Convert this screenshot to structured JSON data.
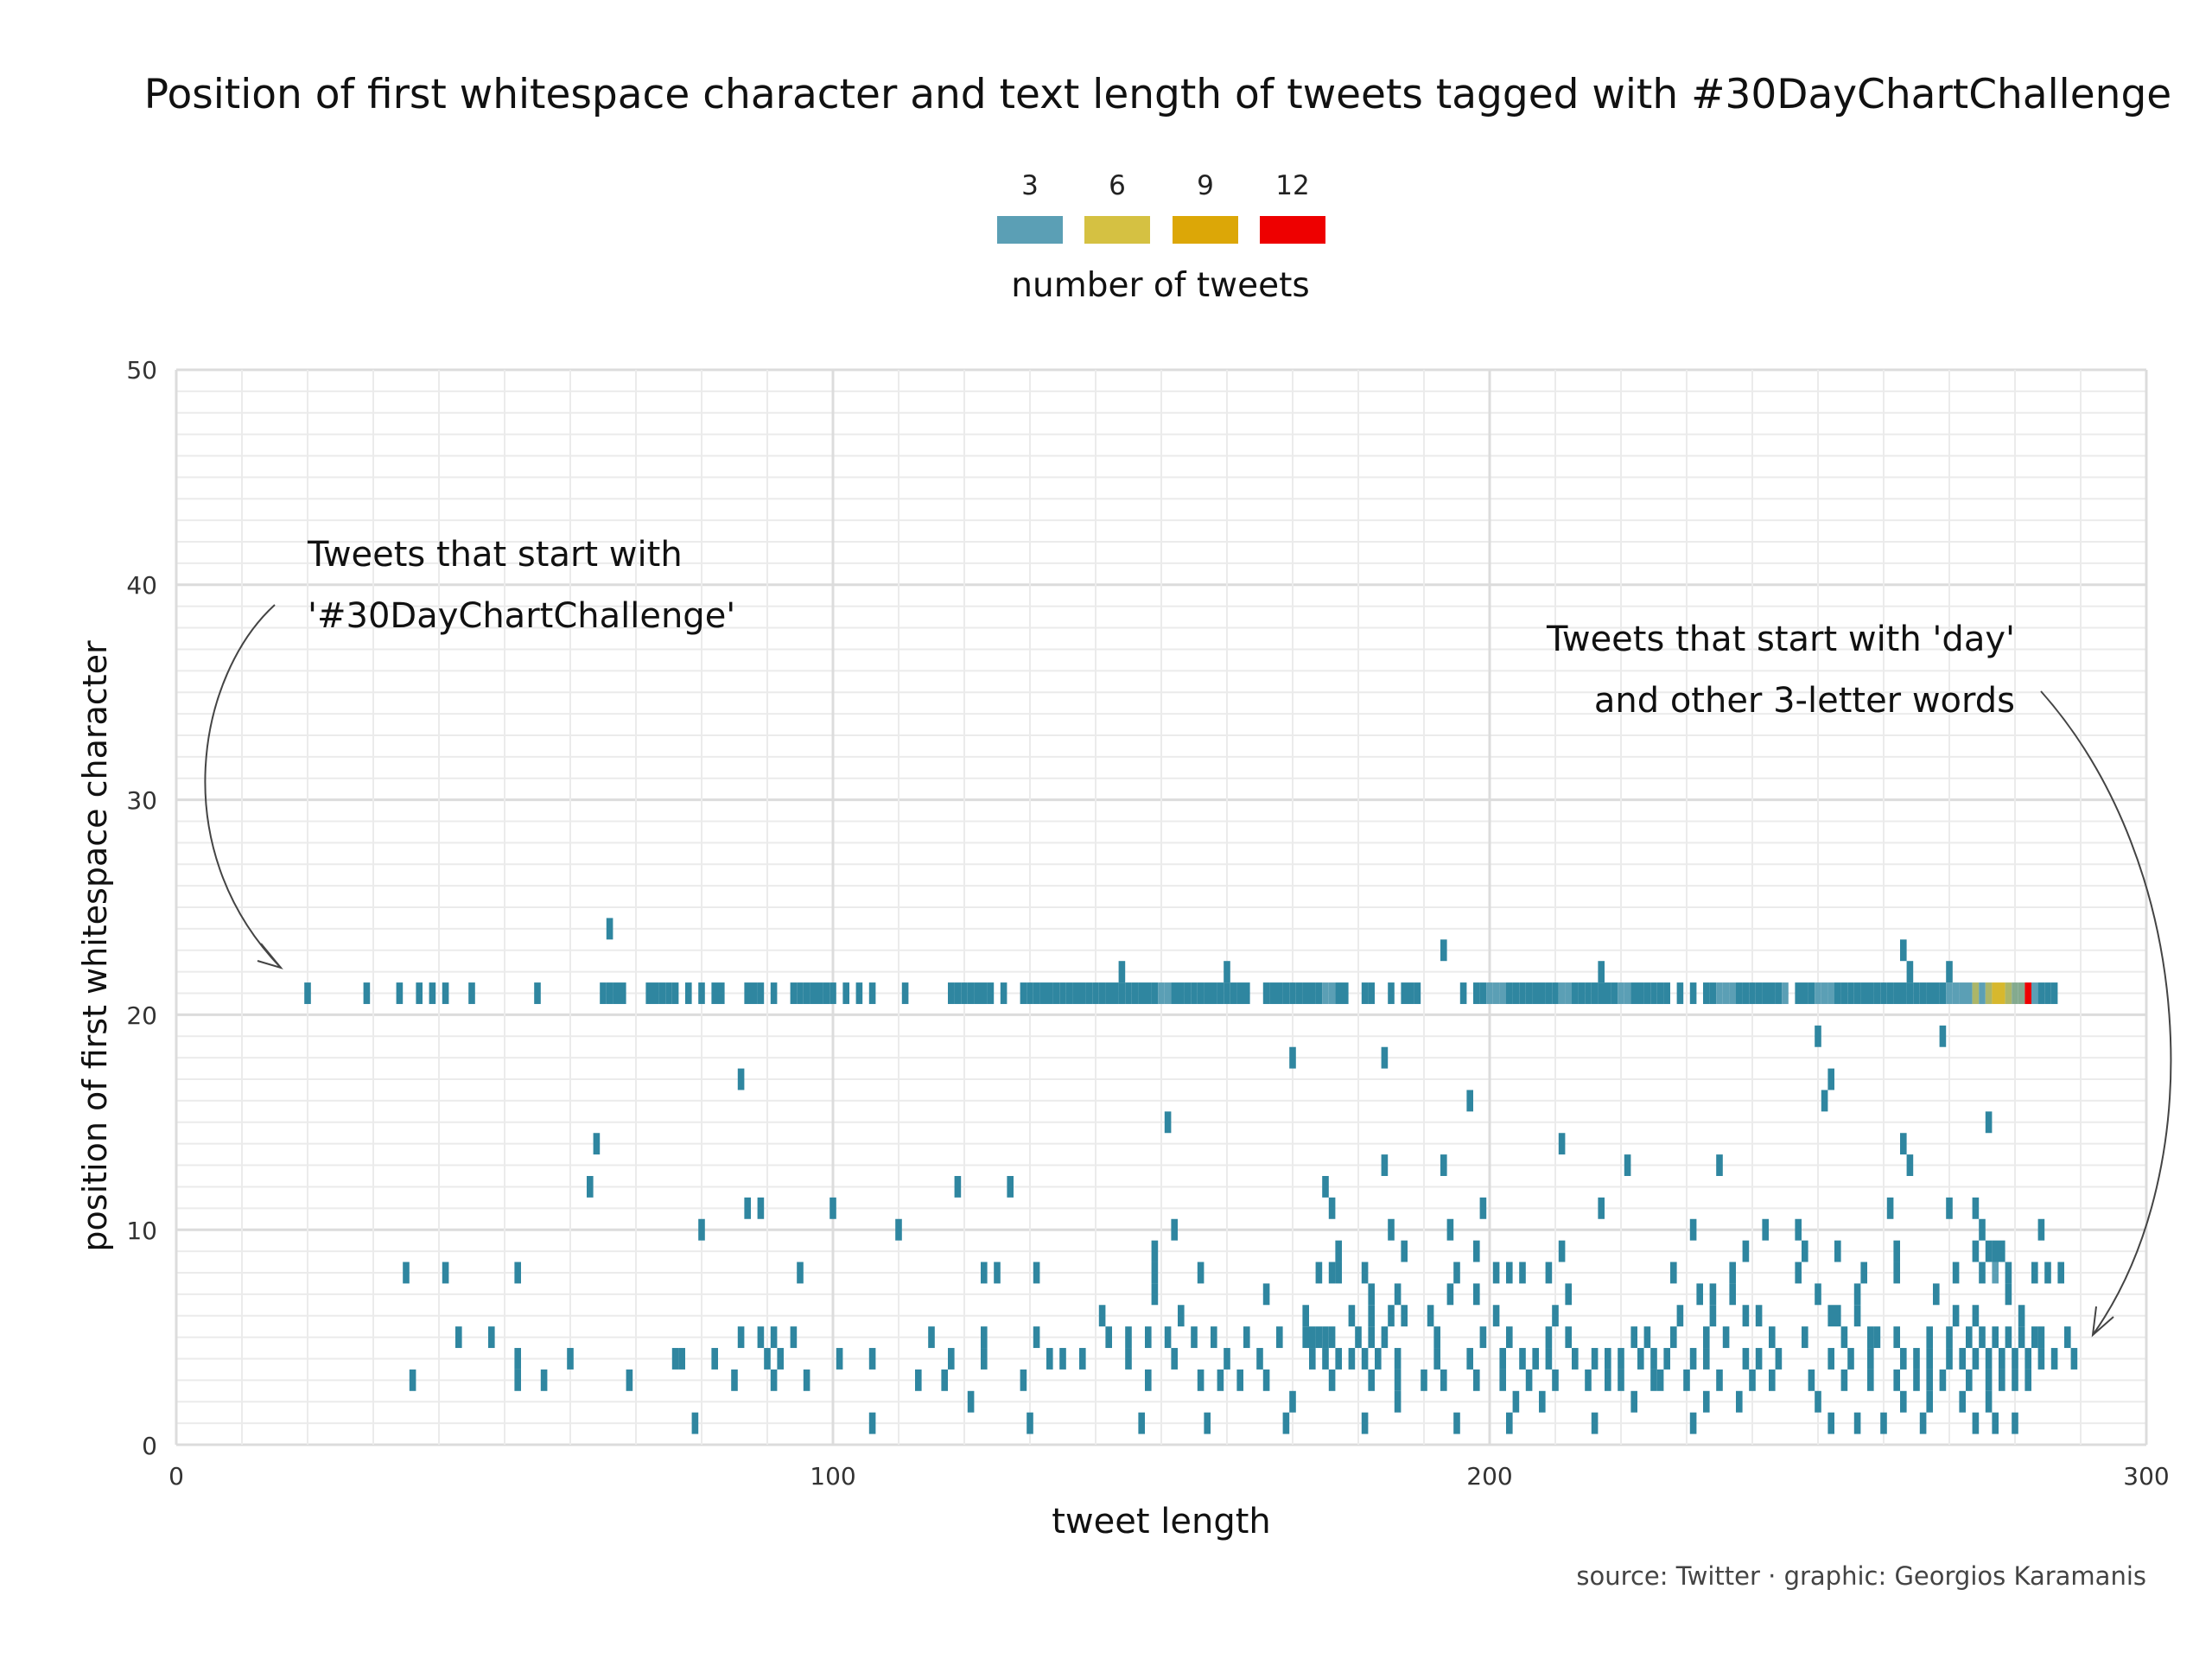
{
  "chart_data": {
    "type": "heatmap",
    "title": "Position of first whitespace character and text length of tweets tagged with #30DayChartChallenge",
    "xlabel": "tweet length",
    "ylabel": "position of first whitespace character",
    "xlim": [
      0,
      300
    ],
    "ylim": [
      0,
      50
    ],
    "x_ticks": [
      0,
      100,
      200,
      300
    ],
    "y_ticks": [
      0,
      10,
      20,
      30,
      40,
      50
    ],
    "grid": true,
    "legend": {
      "title": "number of tweets",
      "placement": "top-center",
      "breaks": [
        3,
        6,
        9,
        12
      ],
      "colors": [
        "#5b9fb5",
        "#d5c142",
        "#dca707",
        "#ee0000"
      ]
    },
    "color_scale": {
      "stops": [
        {
          "value": 1,
          "color": "#2f86a0"
        },
        {
          "value": 3,
          "color": "#5b9fb5"
        },
        {
          "value": 6,
          "color": "#d5c142"
        },
        {
          "value": 9,
          "color": "#dca707"
        },
        {
          "value": 12,
          "color": "#ee0000"
        }
      ]
    },
    "annotations": [
      {
        "lines": [
          "Tweets that start with",
          "'#30DayChartChallenge'"
        ],
        "align": "left"
      },
      {
        "lines": [
          "Tweets that start with 'day'",
          "and other 3-letter words"
        ],
        "align": "right"
      }
    ],
    "caption": "source: Twitter · graphic: Georgios Karamanis",
    "rows": [
      {
        "y": 21,
        "x": [
          20,
          29,
          34,
          37,
          39,
          41,
          45,
          55,
          65,
          66,
          67,
          68,
          72,
          73,
          74,
          75,
          76,
          78,
          80,
          82,
          83,
          87,
          88,
          89,
          91,
          94,
          95,
          96,
          97,
          98,
          99,
          100,
          102,
          104,
          106,
          111,
          118,
          119,
          120,
          121,
          122,
          123,
          124,
          126,
          129,
          130,
          131,
          132,
          133,
          134,
          135,
          136,
          137,
          138,
          139,
          140,
          141,
          142,
          143,
          144,
          145,
          146,
          147,
          148,
          149,
          150,
          151,
          152,
          153,
          154,
          155,
          156,
          157,
          158,
          159,
          160,
          161,
          162,
          163,
          166,
          167,
          168,
          169,
          170,
          171,
          172,
          173,
          174,
          175,
          176,
          177,
          178,
          181,
          182,
          185,
          187,
          188,
          189,
          196,
          198,
          199,
          200,
          201,
          202,
          203,
          204,
          205,
          206,
          207,
          208,
          209,
          210,
          211,
          212,
          213,
          214,
          215,
          216,
          217,
          218,
          219,
          220,
          221,
          222,
          223,
          224,
          225,
          226,
          227,
          229,
          231,
          233,
          234,
          235,
          236,
          237,
          238,
          239,
          240,
          241,
          242,
          243,
          244,
          245,
          247,
          248,
          249,
          250,
          251,
          252,
          253,
          254,
          255,
          256,
          257,
          258,
          259,
          260,
          261,
          262,
          263,
          264,
          265,
          266,
          267,
          268,
          269,
          270,
          271,
          272,
          273,
          274,
          275,
          276,
          277,
          278,
          279,
          280,
          281,
          282,
          283,
          284,
          285,
          286
        ],
        "counts": {
          "150": 3,
          "151": 3,
          "175": 3,
          "176": 3,
          "200": 3,
          "201": 3,
          "202": 3,
          "211": 3,
          "212": 3,
          "220": 3,
          "221": 3,
          "235": 3,
          "236": 3,
          "237": 3,
          "245": 3,
          "250": 3,
          "251": 3,
          "252": 3,
          "270": 3,
          "271": 3,
          "272": 3,
          "273": 3,
          "274": 5,
          "275": 3,
          "276": 5,
          "277": 7,
          "278": 7,
          "279": 5,
          "280": 4,
          "281": 4,
          "282": 12,
          "283": 3
        }
      },
      {
        "y": 22,
        "x": [
          144,
          160,
          217,
          264,
          270
        ]
      },
      {
        "y": 23,
        "x": [
          193,
          263
        ]
      },
      {
        "y": 24,
        "x": [
          66
        ]
      },
      {
        "y": 19,
        "x": [
          250,
          269
        ]
      },
      {
        "y": 18,
        "x": [
          170,
          184
        ]
      },
      {
        "y": 17,
        "x": [
          86,
          252
        ]
      },
      {
        "y": 16,
        "x": [
          197,
          251
        ]
      },
      {
        "y": 15,
        "x": [
          151,
          276
        ]
      },
      {
        "y": 14,
        "x": [
          64,
          211,
          263
        ]
      },
      {
        "y": 13,
        "x": [
          184,
          193,
          221,
          235,
          264
        ]
      },
      {
        "y": 12,
        "x": [
          63,
          119,
          127,
          175
        ]
      },
      {
        "y": 11,
        "x": [
          87,
          89,
          100,
          176,
          199,
          217,
          261,
          270,
          274
        ]
      },
      {
        "y": 10,
        "x": [
          80,
          110,
          152,
          185,
          194,
          231,
          242,
          247,
          275,
          284
        ]
      },
      {
        "y": 9,
        "x": [
          149,
          177,
          187,
          198,
          211,
          239,
          248,
          253,
          262,
          274,
          276,
          277,
          278
        ]
      },
      {
        "y": 8,
        "x": [
          35,
          41,
          52,
          95,
          123,
          125,
          131,
          149,
          156,
          174,
          176,
          177,
          181,
          195,
          201,
          203,
          205,
          209,
          228,
          237,
          247,
          257,
          262,
          271,
          275,
          277,
          279,
          283,
          285,
          287
        ],
        "counts": {
          "277": 3,
          "278": 3
        }
      },
      {
        "y": 7,
        "x": [
          149,
          166,
          182,
          186,
          194,
          198,
          212,
          232,
          234,
          237,
          250,
          256,
          268,
          279
        ]
      },
      {
        "y": 6,
        "x": [
          141,
          153,
          172,
          179,
          182,
          185,
          187,
          191,
          201,
          210,
          229,
          234,
          239,
          241,
          252,
          253,
          256,
          271,
          274,
          281
        ]
      },
      {
        "y": 5,
        "x": [
          43,
          48,
          86,
          89,
          91,
          94,
          115,
          123,
          131,
          142,
          145,
          148,
          151,
          155,
          158,
          163,
          168,
          172,
          173,
          174,
          175,
          176,
          180,
          182,
          184,
          192,
          199,
          203,
          209,
          212,
          222,
          224,
          228,
          233,
          236,
          243,
          248,
          254,
          258,
          259,
          262,
          267,
          270,
          273,
          275,
          277,
          279,
          281,
          283,
          284,
          288
        ]
      },
      {
        "y": 4,
        "x": [
          52,
          60,
          76,
          77,
          82,
          90,
          92,
          101,
          106,
          118,
          123,
          133,
          135,
          138,
          145,
          152,
          160,
          165,
          173,
          175,
          177,
          179,
          181,
          183,
          186,
          192,
          197,
          202,
          205,
          207,
          209,
          213,
          216,
          218,
          220,
          223,
          225,
          227,
          231,
          233,
          239,
          241,
          244,
          252,
          255,
          258,
          263,
          265,
          267,
          270,
          272,
          274,
          276,
          278,
          280,
          282,
          284,
          286,
          289
        ]
      },
      {
        "y": 3,
        "x": [
          36,
          52,
          56,
          69,
          85,
          91,
          96,
          113,
          117,
          129,
          148,
          156,
          159,
          162,
          166,
          176,
          182,
          186,
          190,
          193,
          198,
          202,
          206,
          210,
          215,
          218,
          220,
          225,
          226,
          230,
          235,
          240,
          243,
          249,
          254,
          258,
          262,
          265,
          267,
          269,
          273,
          276,
          278,
          280,
          282
        ]
      },
      {
        "y": 2,
        "x": [
          121,
          170,
          186,
          204,
          208,
          222,
          233,
          238,
          250,
          263,
          267,
          272,
          276
        ]
      },
      {
        "y": 1,
        "x": [
          79,
          106,
          130,
          147,
          157,
          169,
          181,
          195,
          203,
          216,
          231,
          252,
          256,
          260,
          266,
          274,
          277,
          280
        ]
      }
    ]
  }
}
